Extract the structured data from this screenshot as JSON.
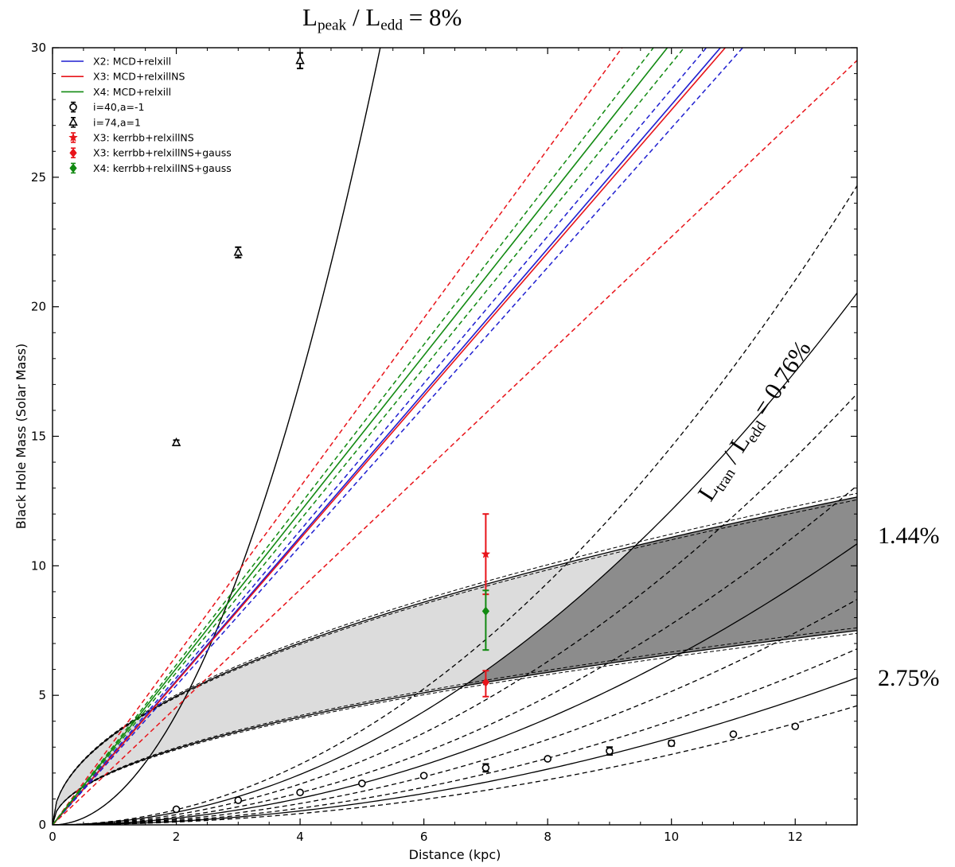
{
  "chart_data": {
    "type": "line",
    "title_top": "L<sub>peak</sub> / L<sub>edd</sub> = 8%",
    "title_parts": {
      "L1": "L",
      "sub1": "peak",
      "sep": " / ",
      "L2": "L",
      "sub2": "edd",
      "rest": " = 8%"
    },
    "xlabel": "Distance (kpc)",
    "ylabel": "Black Hole Mass (Solar Mass)",
    "xlim": [
      0,
      13
    ],
    "ylim": [
      0,
      30
    ],
    "xticks": [
      0,
      2,
      4,
      6,
      8,
      10,
      12
    ],
    "yticks": [
      0,
      5,
      10,
      15,
      20,
      25,
      30
    ],
    "annotations": {
      "tran_parts": {
        "L1": "L",
        "sub1": "tran",
        "sep": " / ",
        "L2": "L",
        "sub2": "edd",
        "rest": " = 0.76%"
      },
      "pct_144": "1.44%",
      "pct_275": "2.75%"
    },
    "colors": {
      "blue": "#1f1fd0",
      "red": "#e8141a",
      "green": "#128a12",
      "black": "#000000",
      "shade_light": "#dcdcdc",
      "shade_dark": "#8c8c8c"
    },
    "linear_series": [
      {
        "name": "X2: MCD+relxill",
        "color": "#1f1fd0",
        "slope": 2.78,
        "style": "solid"
      },
      {
        "name": "X3: MCD+relxillNS",
        "color": "#e8141a",
        "slope": 2.76,
        "style": "solid"
      },
      {
        "name": "X4: MCD+relxill",
        "color": "#128a12",
        "slope": 3.02,
        "style": "solid"
      },
      {
        "name": "",
        "color": "#1f1fd0",
        "slope": 2.84,
        "style": "dashed"
      },
      {
        "name": "",
        "color": "#1f1fd0",
        "slope": 2.69,
        "style": "dashed"
      },
      {
        "name": "",
        "color": "#e8141a",
        "slope": 3.26,
        "style": "dashed"
      },
      {
        "name": "",
        "color": "#e8141a",
        "slope": 2.27,
        "style": "dashed"
      },
      {
        "name": "",
        "color": "#128a12",
        "slope": 3.09,
        "style": "dashed"
      },
      {
        "name": "",
        "color": "#128a12",
        "slope": 2.94,
        "style": "dashed"
      }
    ],
    "peak_curve": {
      "color": "#000000",
      "coef": 1.07,
      "style": "solid"
    },
    "sqrt_band": {
      "lower_coef": [
        2.05,
        2.08,
        2.11
      ],
      "upper_coef": [
        3.48,
        3.51,
        3.55
      ]
    },
    "quadratic_curves": [
      {
        "coef": 0.1215,
        "style": "solid"
      },
      {
        "coef": 0.146,
        "style": "dashed"
      },
      {
        "coef": 0.0985,
        "style": "dashed"
      },
      {
        "coef": 0.0642,
        "style": "solid"
      },
      {
        "coef": 0.0775,
        "style": "dashed"
      },
      {
        "coef": 0.0515,
        "style": "dashed"
      },
      {
        "coef": 0.0336,
        "style": "solid"
      },
      {
        "coef": 0.0402,
        "style": "dashed"
      },
      {
        "coef": 0.0272,
        "style": "dashed"
      }
    ],
    "points_circle": {
      "label": "i=40,a=-1",
      "x": [
        2,
        3,
        4,
        5,
        6,
        7,
        8,
        9,
        10,
        11,
        12
      ],
      "y": [
        0.6,
        0.95,
        1.25,
        1.6,
        1.9,
        2.2,
        2.55,
        2.85,
        3.15,
        3.5,
        3.8
      ],
      "err": [
        0.03,
        0.03,
        0.03,
        0.03,
        0.04,
        0.15,
        0.05,
        0.15,
        0.1,
        0.05,
        0.05
      ]
    },
    "points_triangle": {
      "label": "i=74,a=1",
      "x": [
        2,
        3,
        4
      ],
      "y": [
        14.75,
        22.1,
        29.5
      ],
      "err": [
        0.1,
        0.2,
        0.3
      ]
    },
    "errorbars": [
      {
        "label": "X3: kerrbb+relxillNS",
        "color": "#e8141a",
        "marker": "star",
        "x": 7,
        "y": 10.45,
        "lo": 8.9,
        "hi": 12.0
      },
      {
        "label": "X3: kerrbb+relxillNS+gauss",
        "color": "#e8141a",
        "marker": "diamond",
        "x": 7,
        "y": 5.5,
        "lo": 4.95,
        "hi": 5.95
      },
      {
        "label": "X4: kerrbb+relxillNS+gauss",
        "color": "#128a12",
        "marker": "diamond",
        "x": 7,
        "y": 8.25,
        "lo": 6.75,
        "hi": 9.05
      }
    ],
    "legend": {
      "placement": "top-left",
      "entries": [
        {
          "label": "X2: MCD+relxill",
          "kind": "line",
          "color": "#1f1fd0"
        },
        {
          "label": "X3: MCD+relxillNS",
          "kind": "line",
          "color": "#e8141a"
        },
        {
          "label": "X4: MCD+relxill",
          "kind": "line",
          "color": "#128a12"
        },
        {
          "label": "i=40,a=-1",
          "kind": "circle",
          "color": "#000000"
        },
        {
          "label": "i=74,a=1",
          "kind": "triangle",
          "color": "#000000"
        },
        {
          "label": "X3: kerrbb+relxillNS",
          "kind": "star",
          "color": "#e8141a"
        },
        {
          "label": "X3: kerrbb+relxillNS+gauss",
          "kind": "diamond",
          "color": "#e8141a"
        },
        {
          "label": "X4: kerrbb+relxillNS+gauss",
          "kind": "diamond",
          "color": "#128a12"
        }
      ]
    }
  }
}
